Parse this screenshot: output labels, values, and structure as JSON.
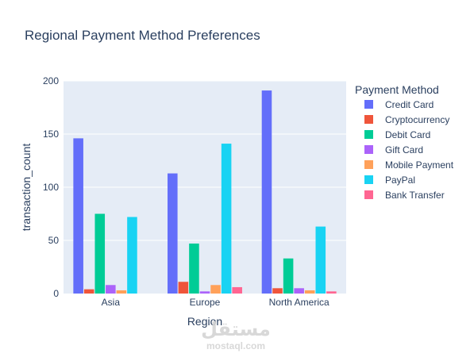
{
  "chart_data": {
    "type": "bar",
    "title": "Regional Payment Method Preferences",
    "xlabel": "Region",
    "ylabel": "transaction_count",
    "categories": [
      "Asia",
      "Europe",
      "North America"
    ],
    "ylim": [
      0,
      200
    ],
    "yticks": [
      0,
      50,
      100,
      150,
      200
    ],
    "legend_title": "Payment Method",
    "legend_position": "right",
    "grid": true,
    "series": [
      {
        "name": "Credit Card",
        "color": "#636efa",
        "values": [
          146,
          113,
          191
        ]
      },
      {
        "name": "Cryptocurrency",
        "color": "#EF553B",
        "values": [
          4,
          11,
          5
        ]
      },
      {
        "name": "Debit Card",
        "color": "#00cc96",
        "values": [
          75,
          47,
          33
        ]
      },
      {
        "name": "Gift Card",
        "color": "#ab63fa",
        "values": [
          8,
          2,
          5
        ]
      },
      {
        "name": "Mobile Payment",
        "color": "#FFA15A",
        "values": [
          3,
          8,
          3
        ]
      },
      {
        "name": "PayPal",
        "color": "#19d3f3",
        "values": [
          72,
          141,
          63
        ]
      },
      {
        "name": "Bank Transfer",
        "color": "#FF6692",
        "values": [
          0,
          6,
          2
        ]
      }
    ]
  },
  "watermark": {
    "arabic": "مستقل",
    "latin": "mostaql.com"
  }
}
